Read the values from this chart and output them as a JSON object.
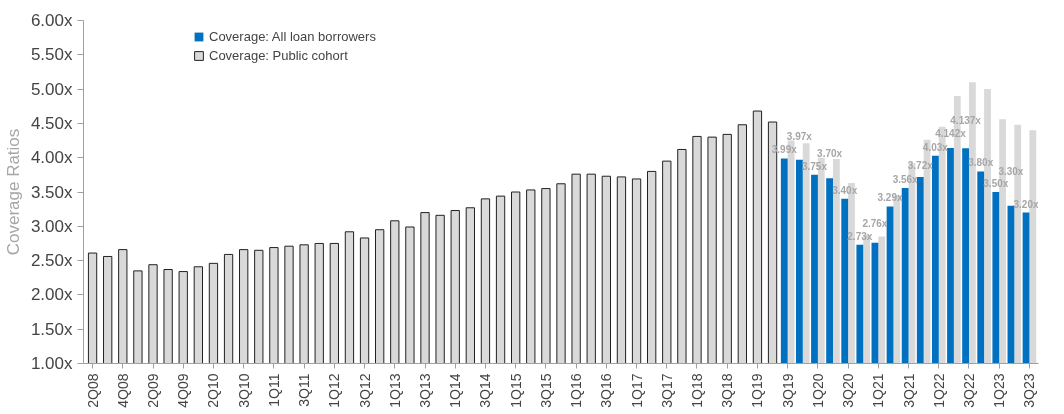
{
  "chart_data": {
    "type": "bar",
    "ylabel": "Coverage Ratios",
    "categories": [
      "2Q08",
      null,
      "4Q08",
      null,
      "2Q09",
      null,
      "4Q09",
      null,
      "2Q10",
      null,
      "3Q10",
      null,
      "1Q11",
      null,
      "3Q11",
      null,
      "1Q12",
      null,
      "3Q12",
      null,
      "1Q13",
      null,
      "3Q13",
      null,
      "1Q14",
      null,
      "3Q14",
      null,
      "1Q15",
      null,
      "3Q15",
      null,
      "1Q16",
      null,
      "3Q16",
      null,
      "1Q17",
      null,
      "3Q17",
      null,
      "1Q18",
      null,
      "3Q18",
      null,
      "1Q19",
      null,
      "3Q19",
      null,
      "1Q20",
      null,
      "3Q20",
      null,
      "1Q21",
      null,
      "3Q21",
      null,
      "1Q22",
      null,
      "3Q22",
      null,
      "1Q23",
      null,
      "3Q23"
    ],
    "series": [
      {
        "name": "Coverage: All loan borrowers",
        "color": "#0070c0",
        "values": [
          null,
          null,
          null,
          null,
          null,
          null,
          null,
          null,
          null,
          null,
          null,
          null,
          null,
          null,
          null,
          null,
          null,
          null,
          null,
          null,
          null,
          null,
          null,
          null,
          null,
          null,
          null,
          null,
          null,
          null,
          null,
          null,
          null,
          null,
          null,
          null,
          null,
          null,
          null,
          null,
          null,
          null,
          null,
          null,
          null,
          null,
          3.99,
          3.97,
          3.75,
          3.7,
          3.4,
          2.73,
          2.76,
          3.29,
          3.56,
          3.72,
          4.03,
          4.142,
          4.137,
          3.8,
          3.5,
          3.3,
          3.2
        ],
        "value_labels": [
          null,
          null,
          null,
          null,
          null,
          null,
          null,
          null,
          null,
          null,
          null,
          null,
          null,
          null,
          null,
          null,
          null,
          null,
          null,
          null,
          null,
          null,
          null,
          null,
          null,
          null,
          null,
          null,
          null,
          null,
          null,
          null,
          null,
          null,
          null,
          null,
          null,
          null,
          null,
          null,
          null,
          null,
          null,
          null,
          null,
          null,
          "3.99x",
          "3.97x",
          "3.75x",
          "3.70x",
          "3.40x",
          "2.73x",
          "2.76x",
          "3.29x",
          "3.56x",
          "3.72x",
          "4.03x",
          "4.142x",
          "4.137x",
          "3.80x",
          "3.50x",
          "3.30x",
          "3.20x"
        ]
      },
      {
        "name": "Coverage: Public cohort",
        "color": "#d9d9d9",
        "values": [
          2.61,
          2.56,
          2.66,
          2.35,
          2.44,
          2.37,
          2.34,
          2.41,
          2.46,
          2.59,
          2.66,
          2.65,
          2.69,
          2.71,
          2.73,
          2.75,
          2.75,
          2.92,
          2.83,
          2.95,
          3.08,
          2.99,
          3.2,
          3.16,
          3.23,
          3.27,
          3.4,
          3.44,
          3.5,
          3.53,
          3.55,
          3.62,
          3.76,
          3.76,
          3.73,
          3.72,
          3.69,
          3.8,
          3.95,
          4.12,
          4.31,
          4.3,
          4.34,
          4.48,
          4.68,
          4.52,
          4.25,
          4.21,
          4.0,
          3.98,
          3.63,
          2.87,
          2.85,
          3.45,
          3.92,
          4.26,
          4.45,
          4.9,
          5.1,
          5.0,
          4.56,
          4.48,
          4.4
        ]
      }
    ],
    "ylim": [
      1,
      6
    ],
    "yticks": [
      {
        "value": 1,
        "label": "1.00x"
      },
      {
        "value": 1.5,
        "label": "1.50x"
      },
      {
        "value": 2,
        "label": "2.00x"
      },
      {
        "value": 2.5,
        "label": "2.50x"
      },
      {
        "value": 3,
        "label": "3.00x"
      },
      {
        "value": 3.5,
        "label": "3.50x"
      },
      {
        "value": 4,
        "label": "4.00x"
      },
      {
        "value": 4.5,
        "label": "4.50x"
      },
      {
        "value": 5,
        "label": "5.00x"
      },
      {
        "value": 5.5,
        "label": "5.50x"
      },
      {
        "value": 6,
        "label": "6.00x"
      }
    ],
    "grid": false,
    "legend": "top left"
  }
}
